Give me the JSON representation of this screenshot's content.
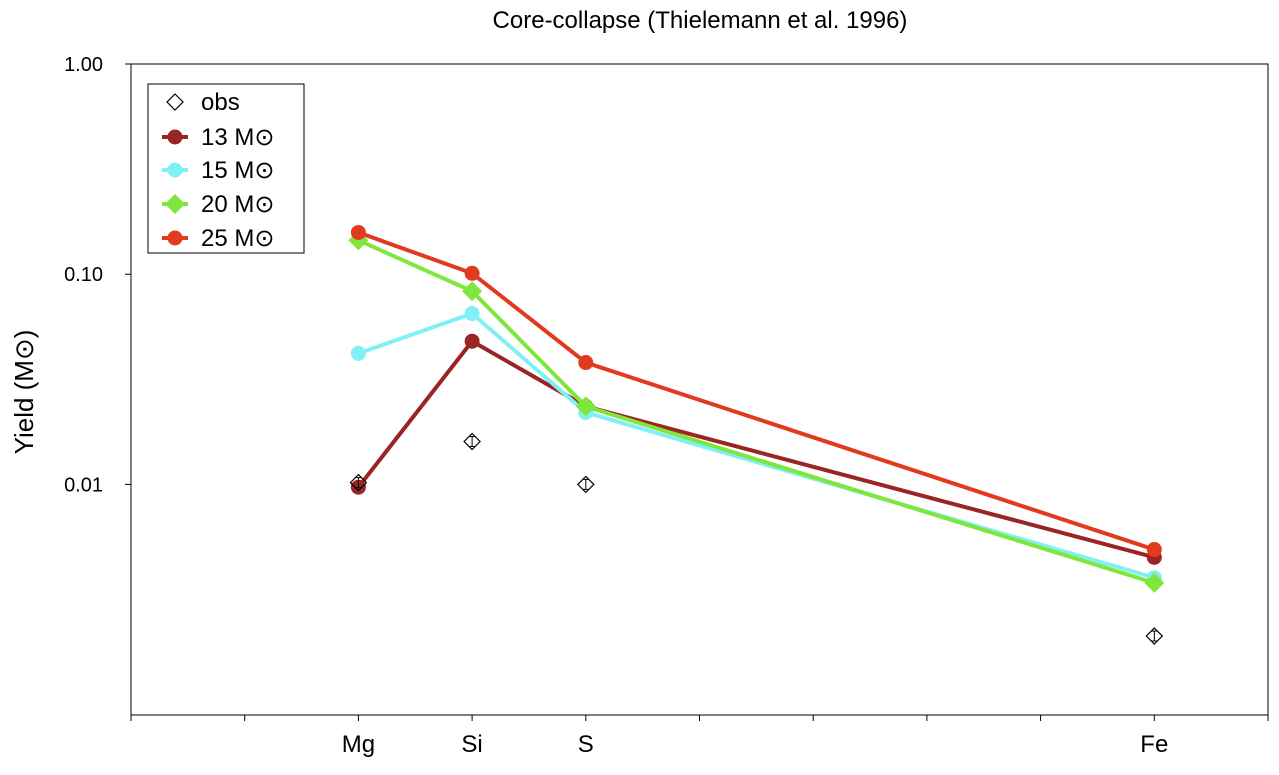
{
  "chart_data": {
    "type": "line",
    "title": "Core-collapse (Thielemann et al. 1996)",
    "xlabel": "",
    "ylabel": "Yield (M⊙)",
    "yscale": "log",
    "ylim": [
      0.0008,
      1.0
    ],
    "yticks": [
      "1.00",
      "0.10",
      "0.01"
    ],
    "categories": [
      "Mg",
      "Si",
      "S",
      "Fe"
    ],
    "category_slots": [
      2,
      3,
      4,
      9
    ],
    "slot_count": 10,
    "grid": false,
    "legend_position": "top-left",
    "observed": {
      "name": "obs",
      "marker": "open-diamond",
      "color": "#000000",
      "values": [
        0.0102,
        0.016,
        0.01,
        0.0019
      ]
    },
    "series": [
      {
        "name": "13 M⊙",
        "color": "#9b2424",
        "marker": "circle",
        "values": [
          0.0097,
          0.048,
          0.0235,
          0.0045
        ]
      },
      {
        "name": "15 M⊙",
        "color": "#80f0f4",
        "marker": "circle",
        "values": [
          0.042,
          0.065,
          0.022,
          0.0036
        ]
      },
      {
        "name": "20 M⊙",
        "color": "#7ee63c",
        "marker": "diamond",
        "values": [
          0.145,
          0.083,
          0.0235,
          0.0034
        ]
      },
      {
        "name": "25 M⊙",
        "color": "#e23a1e",
        "marker": "circle",
        "values": [
          0.158,
          0.101,
          0.038,
          0.0049
        ]
      }
    ]
  }
}
